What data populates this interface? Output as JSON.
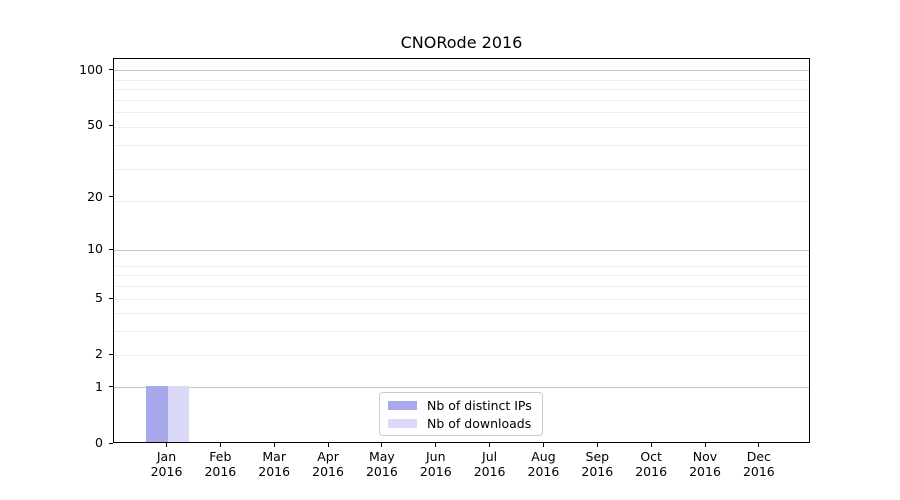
{
  "chart_data": {
    "type": "bar",
    "title": "CNORode 2016",
    "categories": [
      "Jan 2016",
      "Feb 2016",
      "Mar 2016",
      "Apr 2016",
      "May 2016",
      "Jun 2016",
      "Jul 2016",
      "Aug 2016",
      "Sep 2016",
      "Oct 2016",
      "Nov 2016",
      "Dec 2016"
    ],
    "series": [
      {
        "name": "Nb of distinct IPs",
        "color": "#a8a8ed",
        "values": [
          1,
          0,
          0,
          0,
          0,
          0,
          0,
          0,
          0,
          0,
          0,
          0
        ]
      },
      {
        "name": "Nb of downloads",
        "color": "#dadaf8",
        "values": [
          1,
          0,
          0,
          0,
          0,
          0,
          0,
          0,
          0,
          0,
          0,
          0
        ]
      }
    ],
    "xlabel": "",
    "ylabel": "",
    "y_ticks": [
      0,
      1,
      2,
      5,
      10,
      20,
      50,
      100
    ],
    "scale": "log1p",
    "ylim": [
      0,
      116
    ],
    "grid": true,
    "major_grid_values": [
      1,
      10,
      100
    ],
    "minor_grid_values": [
      2,
      3,
      4,
      5,
      6,
      7,
      8,
      19,
      29,
      39,
      49,
      59,
      69,
      79,
      89
    ],
    "legend_position": "lower center",
    "colors": {
      "major_grid": "#c6c6c6",
      "minor_grid": "#ededed",
      "axis": "#000000",
      "text": "#000000",
      "background": "#ffffff"
    }
  }
}
